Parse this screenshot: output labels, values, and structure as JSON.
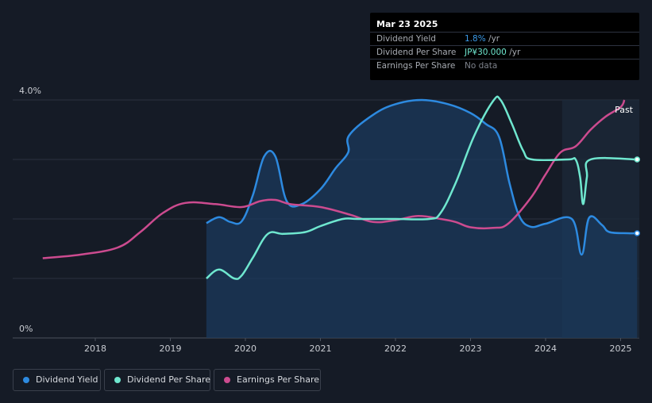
{
  "tooltip": {
    "date": "Mar 23 2025",
    "rows": [
      {
        "label": "Dividend Yield",
        "value": "1.8%",
        "unit": " /yr",
        "color": "#3b9ae8"
      },
      {
        "label": "Dividend Per Share",
        "value": "JP¥30.000",
        "unit": " /yr",
        "color": "#6fe7cf"
      },
      {
        "label": "Earnings Per Share",
        "value": "No data",
        "unit": "",
        "color": "#7d828b"
      }
    ]
  },
  "legend": [
    {
      "label": "Dividend Yield",
      "color": "#2d8ae0"
    },
    {
      "label": "Dividend Per Share",
      "color": "#6fe7cf"
    },
    {
      "label": "Earnings Per Share",
      "color": "#cc4b8f"
    }
  ],
  "chart_data": {
    "type": "line",
    "x_ticks": [
      "2018",
      "2019",
      "2020",
      "2021",
      "2022",
      "2023",
      "2024",
      "2025"
    ],
    "y_ticks": [
      "0%",
      "4.0%"
    ],
    "ylim": [
      0,
      4.0
    ],
    "past_label": "Past",
    "grid": true,
    "colors": {
      "yield": "#2d8ae0",
      "dps": "#6fe7cf",
      "eps": "#cc4b8f"
    },
    "series": [
      {
        "key": "yield",
        "name": "Dividend Yield",
        "unit": "%",
        "points": [
          [
            2019.48,
            1.93
          ],
          [
            2019.65,
            2.03
          ],
          [
            2019.8,
            1.95
          ],
          [
            2019.95,
            1.96
          ],
          [
            2020.1,
            2.4
          ],
          [
            2020.25,
            3.05
          ],
          [
            2020.4,
            3.05
          ],
          [
            2020.55,
            2.3
          ],
          [
            2020.75,
            2.25
          ],
          [
            2021.0,
            2.5
          ],
          [
            2021.2,
            2.85
          ],
          [
            2021.37,
            3.12
          ],
          [
            2021.38,
            3.4
          ],
          [
            2021.7,
            3.75
          ],
          [
            2022.0,
            3.93
          ],
          [
            2022.35,
            4.0
          ],
          [
            2022.7,
            3.93
          ],
          [
            2023.0,
            3.78
          ],
          [
            2023.2,
            3.6
          ],
          [
            2023.38,
            3.38
          ],
          [
            2023.52,
            2.6
          ],
          [
            2023.65,
            2.05
          ],
          [
            2023.8,
            1.87
          ],
          [
            2024.0,
            1.92
          ],
          [
            2024.35,
            2.0
          ],
          [
            2024.48,
            1.4
          ],
          [
            2024.58,
            2.02
          ],
          [
            2024.75,
            1.9
          ],
          [
            2024.85,
            1.78
          ],
          [
            2025.1,
            1.76
          ],
          [
            2025.22,
            1.76
          ]
        ]
      },
      {
        "key": "dps",
        "name": "Dividend Per Share",
        "unit": "JP¥",
        "points": [
          [
            2019.48,
            1.0
          ],
          [
            2019.65,
            1.15
          ],
          [
            2019.85,
            1.0
          ],
          [
            2019.95,
            1.05
          ],
          [
            2020.1,
            1.35
          ],
          [
            2020.3,
            1.75
          ],
          [
            2020.5,
            1.75
          ],
          [
            2020.8,
            1.78
          ],
          [
            2021.0,
            1.88
          ],
          [
            2021.3,
            2.0
          ],
          [
            2021.5,
            2.0
          ],
          [
            2022.0,
            2.0
          ],
          [
            2022.45,
            2.0
          ],
          [
            2022.6,
            2.1
          ],
          [
            2022.8,
            2.6
          ],
          [
            2023.05,
            3.4
          ],
          [
            2023.3,
            3.98
          ],
          [
            2023.4,
            4.0
          ],
          [
            2023.55,
            3.6
          ],
          [
            2023.7,
            3.15
          ],
          [
            2023.82,
            3.0
          ],
          [
            2024.3,
            3.0
          ],
          [
            2024.4,
            3.0
          ],
          [
            2024.46,
            2.7
          ],
          [
            2024.5,
            2.25
          ],
          [
            2024.55,
            2.7
          ],
          [
            2024.6,
            3.0
          ],
          [
            2025.22,
            3.0
          ]
        ]
      },
      {
        "key": "eps",
        "name": "Earnings Per Share",
        "unit": "JP¥",
        "points": [
          [
            2017.3,
            1.34
          ],
          [
            2017.8,
            1.4
          ],
          [
            2018.3,
            1.52
          ],
          [
            2018.6,
            1.78
          ],
          [
            2018.9,
            2.1
          ],
          [
            2019.2,
            2.27
          ],
          [
            2019.6,
            2.25
          ],
          [
            2019.95,
            2.2
          ],
          [
            2020.2,
            2.3
          ],
          [
            2020.4,
            2.32
          ],
          [
            2020.6,
            2.25
          ],
          [
            2021.0,
            2.2
          ],
          [
            2021.4,
            2.07
          ],
          [
            2021.7,
            1.95
          ],
          [
            2022.0,
            1.98
          ],
          [
            2022.3,
            2.05
          ],
          [
            2022.6,
            2.0
          ],
          [
            2022.8,
            1.95
          ],
          [
            2023.0,
            1.86
          ],
          [
            2023.3,
            1.85
          ],
          [
            2023.5,
            1.92
          ],
          [
            2023.8,
            2.35
          ],
          [
            2024.0,
            2.75
          ],
          [
            2024.2,
            3.12
          ],
          [
            2024.4,
            3.22
          ],
          [
            2024.6,
            3.5
          ],
          [
            2024.8,
            3.72
          ],
          [
            2025.0,
            3.88
          ],
          [
            2025.05,
            4.0
          ]
        ]
      }
    ]
  }
}
